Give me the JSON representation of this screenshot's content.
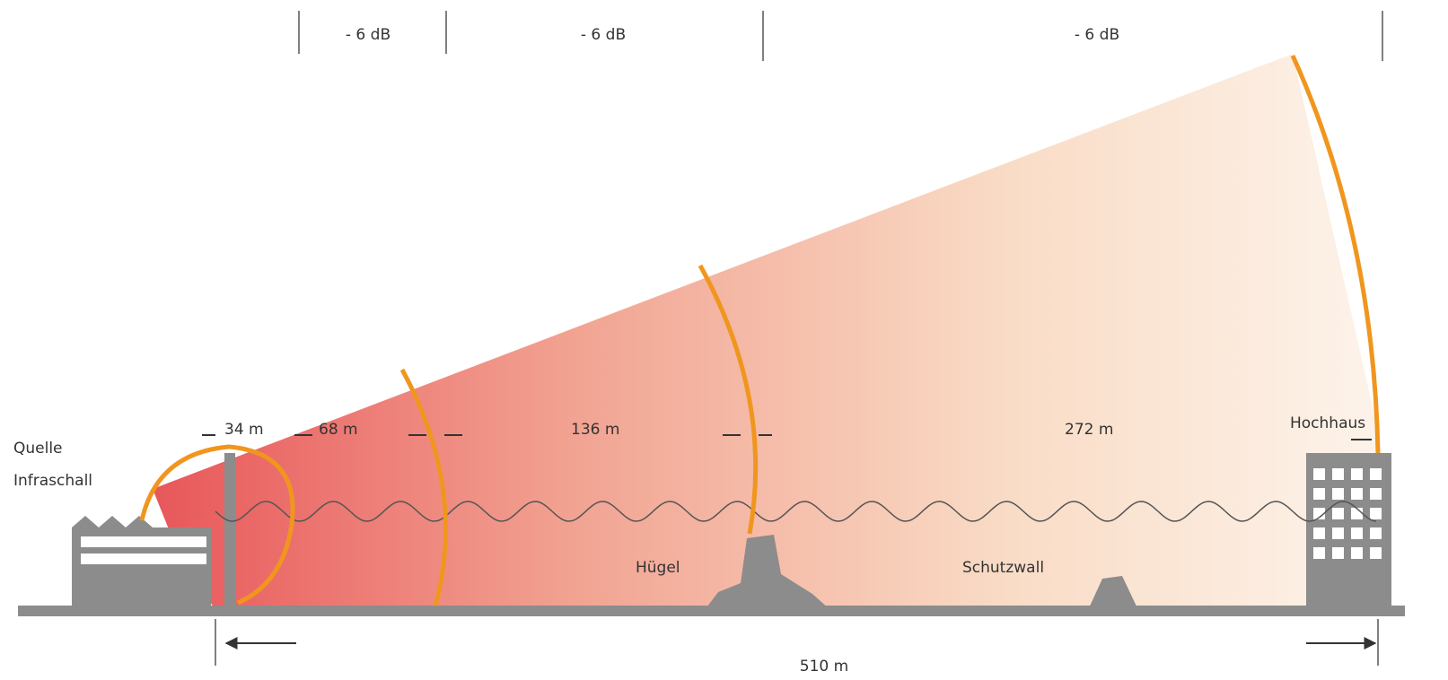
{
  "db_labels": [
    "- 6 dB",
    "- 6 dB",
    "- 6 dB"
  ],
  "distances": [
    "34 m",
    "68 m",
    "136 m",
    "272 m"
  ],
  "total_distance": "510 m",
  "labels": {
    "source": [
      "Quelle",
      "Infraschall"
    ],
    "hill": "Hügel",
    "wall": "Schutzwall",
    "building": "Hochhaus"
  }
}
